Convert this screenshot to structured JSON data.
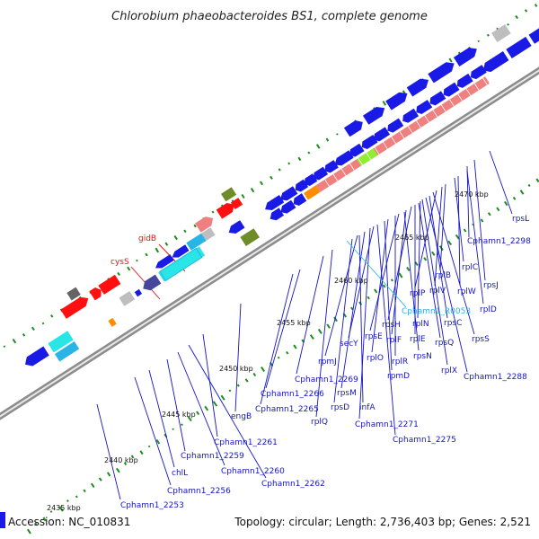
{
  "title": "Chlorobium phaeobacteroides BS1, complete genome",
  "accession_label": "Accession: NC_010831",
  "info_label": "Topology: circular; Length: 2,736,403 bp; Genes: 2,521",
  "colors": {
    "background": "#ffffff",
    "backbone": "#8c8c8c",
    "gene_blue": "#1a1ae6",
    "gene_pink": "#f08080",
    "gene_red": "#ff1010",
    "gene_green": "#6e8c28",
    "gene_lime": "#90ee30",
    "gene_cyan": "#28e6e6",
    "gene_orange": "#ff8c00",
    "gene_gray": "#bebebe",
    "gene_darkgray": "#646464",
    "gene_navy": "#46469a",
    "gc_tick": "#1e8c1e",
    "label_blue": "#1414c8",
    "label_red": "#dc1414",
    "label_cyan": "#28b4e6"
  },
  "kbp_ticks": [
    "2435 kbp",
    "2440 kbp",
    "2445 kbp",
    "2450 kbp",
    "2455 kbp",
    "2460 kbp",
    "2465 kbp",
    "2470 kbp"
  ],
  "labels_blue": [
    "rpsL",
    "Cphamn1_2298",
    "rplC",
    "rpsJ",
    "rplB",
    "rplW",
    "rplD",
    "rplP",
    "rplV",
    "rpsC",
    "rpsS",
    "rplN",
    "rpsH",
    "rplF",
    "rplE",
    "rpsQ",
    "rpsE",
    "rplR",
    "rpsN",
    "secY",
    "rplO",
    "rplX",
    "Cphamn1_2288",
    "rpmD",
    "rpmJ",
    "Cphamn1_2269",
    "rpsM",
    "Cphamn1_2266",
    "rpsD",
    "infA",
    "Cphamn1_2265",
    "rplQ",
    "Cphamn1_2271",
    "Cphamn1_2275",
    "engB",
    "Cphamn1_2261",
    "Cphamn1_2259",
    "Cphamn1_2260",
    "Cphamn1_2262",
    "chlL",
    "Cphamn1_2256",
    "Cphamn1_2253"
  ],
  "labels_red": [
    "gidB",
    "cysS"
  ],
  "labels_cyan": [
    "Cphamn1_R0053"
  ]
}
